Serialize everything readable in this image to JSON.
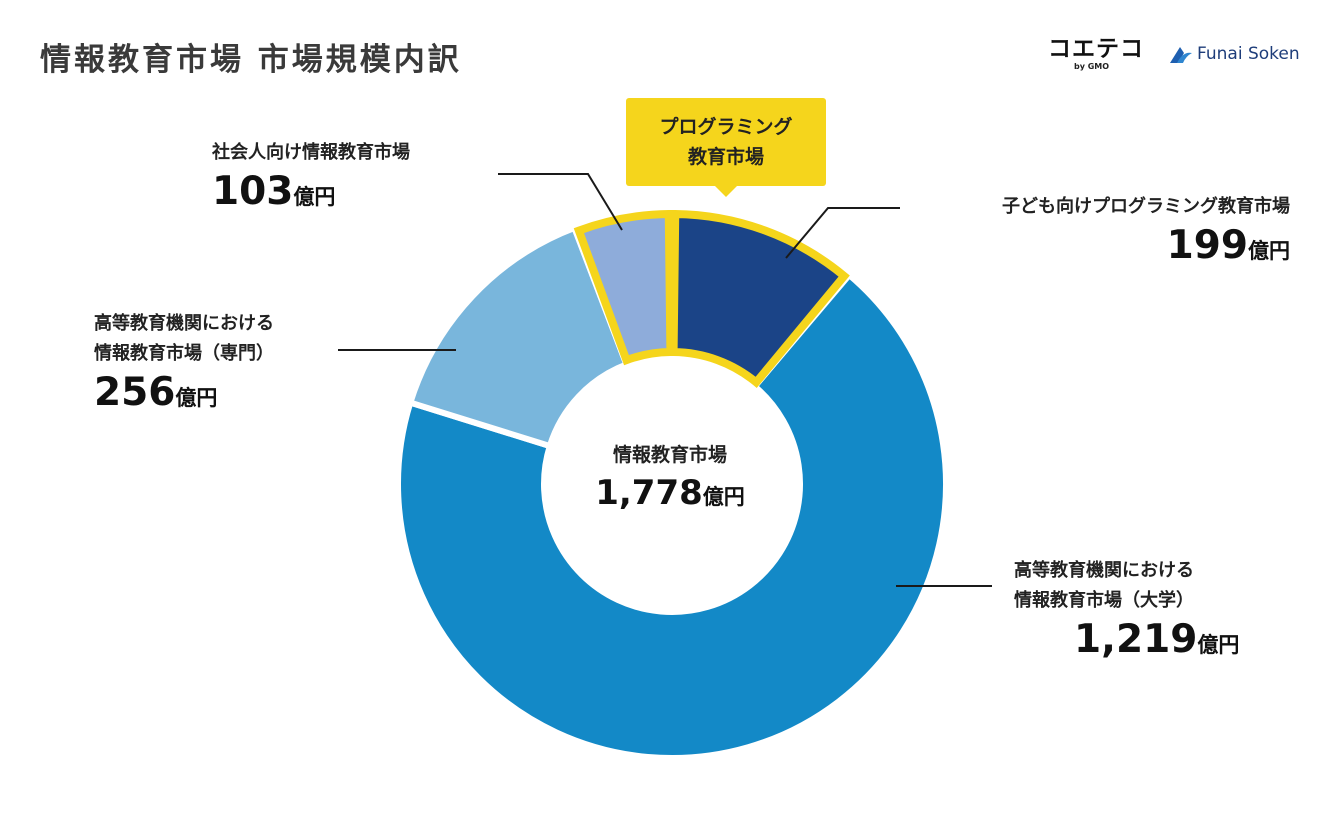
{
  "header": {
    "title": "情報教育市場 市場規模内訳",
    "logo_primary": "コエテコ",
    "logo_primary_sub": "by GMO",
    "logo_secondary": "Funai Soken",
    "logo_secondary_icon": "funai-wave-logo-icon"
  },
  "callout": {
    "line1": "プログラミング",
    "line2": "教育市場"
  },
  "center": {
    "name": "情報教育市場",
    "value": "1,778",
    "unit": "億円"
  },
  "labels": {
    "kids": {
      "name": "子ども向けプログラミング教育市場",
      "value": "199",
      "unit": "億円"
    },
    "university": {
      "line1": "高等教育機関における",
      "line2": "情報教育市場（大学）",
      "value": "1,219",
      "unit": "億円"
    },
    "vocational": {
      "line1": "高等教育機関における",
      "line2": "情報教育市場（専門）",
      "value": "256",
      "unit": "億円"
    },
    "adult": {
      "name": "社会人向け情報教育市場",
      "value": "103",
      "unit": "億円"
    }
  },
  "chart_data": {
    "type": "pie",
    "variant": "donut",
    "title": "情報教育市場 市場規模内訳",
    "unit": "億円",
    "total": 1778,
    "categories": [
      "子ども向けプログラミング教育市場",
      "高等教育機関における情報教育市場（大学）",
      "高等教育機関における情報教育市場（専門）",
      "社会人向け情報教育市場"
    ],
    "values": [
      199,
      1219,
      256,
      103
    ],
    "colors": [
      "#1b4487",
      "#1389c7",
      "#79b6dc",
      "#8eacda"
    ],
    "highlight": {
      "label": "プログラミング教育市場",
      "categories": [
        "子ども向けプログラミング教育市場",
        "社会人向け情報教育市場"
      ],
      "color": "#f5d51c"
    }
  }
}
